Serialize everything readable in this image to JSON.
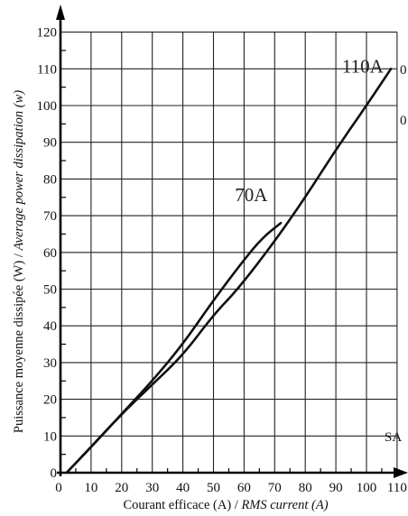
{
  "chart_data": {
    "type": "line",
    "xlabel_plain": "Courant efficace  (A) / ",
    "xlabel_italic": "RMS current (A)",
    "ylabel_plain": "Puissance moyenne dissipée (W) / ",
    "ylabel_italic": "Average power dissipation (w)",
    "xlim": [
      0,
      110
    ],
    "ylim": [
      0,
      120
    ],
    "x_ticks": [
      0,
      10,
      20,
      30,
      40,
      50,
      60,
      70,
      80,
      90,
      100,
      110
    ],
    "y_ticks": [
      0,
      10,
      20,
      30,
      40,
      50,
      60,
      70,
      80,
      90,
      100,
      110,
      120
    ],
    "minor_x_step": 5,
    "minor_y_step": 5,
    "grid": true,
    "series": [
      {
        "name": "70A",
        "points": [
          [
            2,
            0
          ],
          [
            10,
            7
          ],
          [
            20,
            16
          ],
          [
            30,
            25
          ],
          [
            40,
            35
          ],
          [
            50,
            47
          ],
          [
            60,
            58
          ],
          [
            66,
            64
          ],
          [
            72,
            68
          ]
        ]
      },
      {
        "name": "110A",
        "points": [
          [
            2,
            0
          ],
          [
            10,
            7
          ],
          [
            20,
            16
          ],
          [
            30,
            24
          ],
          [
            40,
            32
          ],
          [
            50,
            43
          ],
          [
            58,
            50
          ],
          [
            70,
            63
          ],
          [
            80,
            75
          ],
          [
            90,
            88
          ],
          [
            100,
            100
          ],
          [
            108,
            110
          ]
        ]
      }
    ],
    "annotations": [
      {
        "text": "70A",
        "x": 57,
        "y": 74
      },
      {
        "text": "110A",
        "x": 92,
        "y": 109
      }
    ],
    "edge_texts": [
      "0",
      "0",
      "SA"
    ]
  }
}
